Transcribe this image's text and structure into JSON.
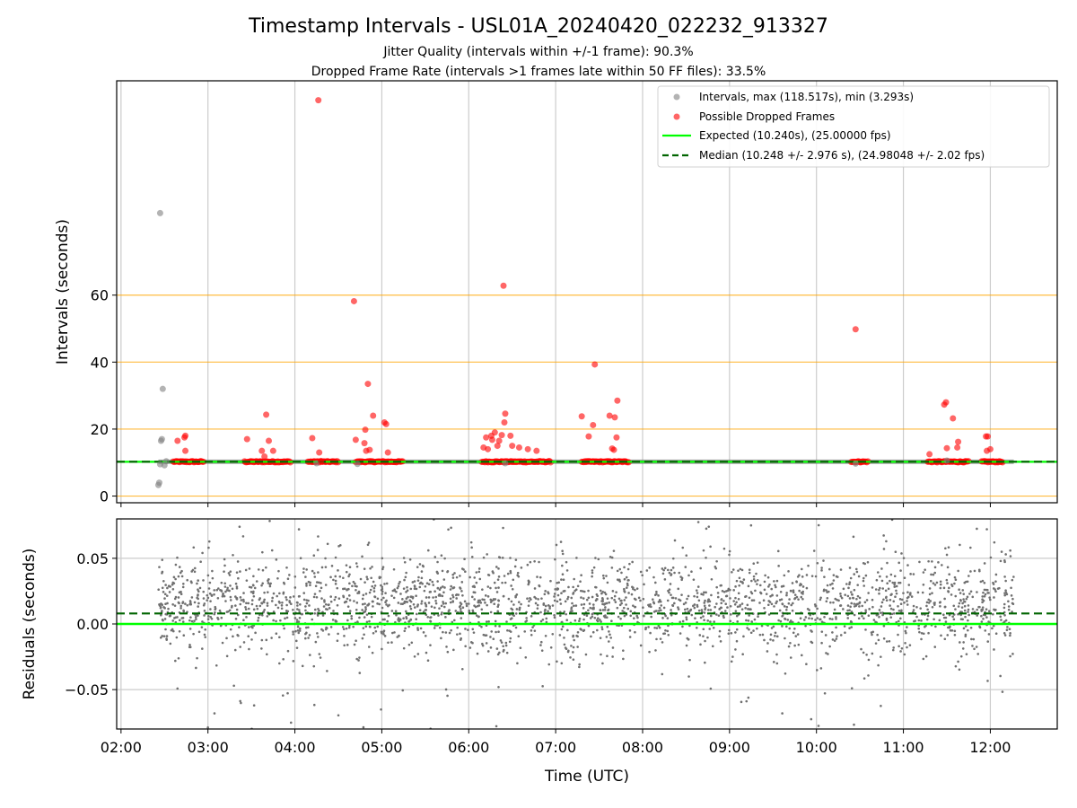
{
  "chart_data": [
    {
      "type": "scatter",
      "panel": "top",
      "title": "Timestamp Intervals - USL01A_20240420_022232_913327",
      "subtitle_lines": [
        "Jitter Quality (intervals within +/-1 frame): 90.3%",
        "Dropped Frame Rate (intervals >1 frames late within 50 FF files): 33.5%"
      ],
      "xlabel": "",
      "ylabel": "Intervals (seconds)",
      "xlim_hours": [
        1.95,
        12.77
      ],
      "ylim": [
        -2,
        124
      ],
      "y_ticks": [
        0,
        20,
        40,
        60
      ],
      "x_tick_hours": [
        2,
        3,
        4,
        5,
        6,
        7,
        8,
        9,
        10,
        11,
        12
      ],
      "x_tick_labels": [
        "02:00",
        "03:00",
        "04:00",
        "05:00",
        "06:00",
        "07:00",
        "08:00",
        "09:00",
        "10:00",
        "11:00",
        "12:00"
      ],
      "grid": "vertical",
      "hlines": [
        0,
        20,
        40,
        60
      ],
      "hline_color": "#ffa500",
      "legend_position": "upper right",
      "legend": [
        "Intervals, max (118.517s), min (3.293s)",
        "Possible Dropped Frames",
        "Expected (10.240s), (25.00000 fps)",
        "Median (10.248 +/- 2.976 s), (24.98048 +/- 2.02 fps)"
      ],
      "expected_interval": 10.24,
      "median_interval": 10.248,
      "series": [
        {
          "kind": "scatter",
          "color": "#808080",
          "points": [
            [
              2.43,
              3.3
            ],
            [
              2.44,
              4.0
            ],
            [
              2.45,
              9.5
            ],
            [
              2.46,
              16.5
            ],
            [
              2.47,
              17.0
            ],
            [
              2.48,
              32.0
            ],
            [
              2.45,
              84.5
            ],
            [
              2.5,
              9.2
            ],
            [
              2.52,
              10.4
            ],
            [
              4.25,
              9.8
            ],
            [
              4.72,
              9.6
            ],
            [
              6.42,
              9.8
            ],
            [
              10.45,
              9.7
            ],
            [
              11.5,
              10.6
            ]
          ]
        },
        {
          "kind": "scatter",
          "color": "#ff0000",
          "points": [
            [
              2.65,
              16.5
            ],
            [
              2.73,
              17.5
            ],
            [
              2.74,
              18.0
            ],
            [
              2.74,
              13.5
            ],
            [
              3.45,
              17.0
            ],
            [
              3.67,
              24.3
            ],
            [
              3.62,
              13.5
            ],
            [
              3.7,
              16.5
            ],
            [
              3.75,
              13.5
            ],
            [
              3.65,
              11.8
            ],
            [
              4.2,
              17.3
            ],
            [
              4.28,
              13.0
            ],
            [
              4.27,
              118.2
            ],
            [
              4.3,
              10.5
            ],
            [
              4.7,
              16.8
            ],
            [
              4.68,
              58.2
            ],
            [
              4.8,
              15.8
            ],
            [
              4.81,
              19.8
            ],
            [
              4.82,
              13.5
            ],
            [
              4.84,
              33.5
            ],
            [
              4.86,
              13.8
            ],
            [
              4.9,
              24.0
            ],
            [
              5.03,
              22.0
            ],
            [
              5.05,
              21.5
            ],
            [
              5.07,
              13.0
            ],
            [
              6.17,
              14.5
            ],
            [
              6.2,
              17.5
            ],
            [
              6.22,
              14.0
            ],
            [
              6.26,
              18.0
            ],
            [
              6.27,
              16.8
            ],
            [
              6.3,
              19.0
            ],
            [
              6.33,
              15.0
            ],
            [
              6.35,
              16.5
            ],
            [
              6.38,
              18.2
            ],
            [
              6.4,
              62.8
            ],
            [
              6.42,
              24.6
            ],
            [
              6.41,
              22.0
            ],
            [
              6.48,
              18.0
            ],
            [
              6.5,
              15.0
            ],
            [
              6.58,
              14.5
            ],
            [
              6.68,
              14.0
            ],
            [
              6.78,
              13.5
            ],
            [
              7.3,
              23.8
            ],
            [
              7.38,
              17.8
            ],
            [
              7.43,
              21.2
            ],
            [
              7.45,
              39.3
            ],
            [
              7.62,
              24.0
            ],
            [
              7.65,
              14.2
            ],
            [
              7.67,
              13.8
            ],
            [
              7.68,
              23.5
            ],
            [
              7.7,
              17.5
            ],
            [
              7.71,
              28.5
            ],
            [
              10.45,
              49.8
            ],
            [
              11.3,
              12.5
            ],
            [
              11.47,
              27.3
            ],
            [
              11.49,
              28.0
            ],
            [
              11.5,
              14.3
            ],
            [
              11.57,
              23.2
            ],
            [
              11.62,
              14.5
            ],
            [
              11.63,
              16.2
            ],
            [
              11.95,
              17.8
            ],
            [
              11.97,
              17.8
            ],
            [
              11.96,
              13.5
            ],
            [
              12.0,
              14.0
            ]
          ]
        }
      ],
      "dropped_frame_bands_hours": [
        [
          2.6,
          2.95
        ],
        [
          3.42,
          3.95
        ],
        [
          4.15,
          4.5
        ],
        [
          4.7,
          5.25
        ],
        [
          6.15,
          6.95
        ],
        [
          7.3,
          7.85
        ],
        [
          10.4,
          10.6
        ],
        [
          11.28,
          11.75
        ],
        [
          11.9,
          12.15
        ]
      ]
    },
    {
      "type": "scatter",
      "panel": "bottom",
      "xlabel": "Time (UTC)",
      "ylabel": "Residuals (seconds)",
      "xlim_hours": [
        1.95,
        12.77
      ],
      "ylim": [
        -0.08,
        0.08
      ],
      "y_ticks": [
        0.05,
        0.0,
        -0.05
      ],
      "y_tick_labels": [
        "0.05",
        "0.00",
        "−0.05"
      ],
      "x_tick_hours": [
        2,
        3,
        4,
        5,
        6,
        7,
        8,
        9,
        10,
        11,
        12
      ],
      "x_tick_labels": [
        "02:00",
        "03:00",
        "04:00",
        "05:00",
        "06:00",
        "07:00",
        "08:00",
        "09:00",
        "10:00",
        "11:00",
        "12:00"
      ],
      "grid": "both",
      "expected_residual": 0.0,
      "median_residual": 0.008,
      "series": [
        {
          "kind": "scatter",
          "color": "#707070",
          "x_range_hours": [
            2.43,
            12.27
          ],
          "point_count": 2600,
          "center": 0.013,
          "spread": 0.018
        }
      ]
    }
  ],
  "colors": {
    "interval_points": "#808080",
    "dropped_points": "#ff0000",
    "expected_line": "#00ff00",
    "median_line": "#006400",
    "residual_points": "#707070",
    "grid": "#cccccc",
    "threshold_lines": "#ffa500"
  }
}
